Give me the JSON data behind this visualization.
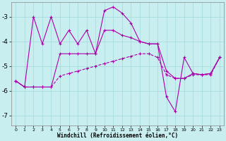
{
  "xlabel": "Windchill (Refroidissement éolien,°C)",
  "bg_color": "#c8eef0",
  "grid_color": "#a8dce0",
  "line_color": "#aa00aa",
  "xlim": [
    -0.5,
    23.5
  ],
  "ylim": [
    -7.4,
    -2.4
  ],
  "yticks": [
    -7,
    -6,
    -5,
    -4,
    -3
  ],
  "xticks": [
    0,
    1,
    2,
    3,
    4,
    5,
    6,
    7,
    8,
    9,
    10,
    11,
    12,
    13,
    14,
    15,
    16,
    17,
    18,
    19,
    20,
    21,
    22,
    23
  ],
  "series1_x": [
    0,
    1,
    2,
    3,
    4,
    5,
    6,
    7,
    8,
    9,
    10,
    11,
    12,
    13,
    14,
    15,
    16,
    17,
    18,
    19,
    20,
    21,
    22,
    23
  ],
  "series1_y": [
    -5.6,
    -5.85,
    -5.85,
    -5.85,
    -5.85,
    -4.5,
    -4.5,
    -4.5,
    -4.5,
    -4.5,
    -3.55,
    -3.55,
    -3.75,
    -3.85,
    -4.0,
    -4.1,
    -4.1,
    -5.2,
    -5.5,
    -5.5,
    -5.3,
    -5.35,
    -5.3,
    -4.65
  ],
  "series2_x": [
    0,
    1,
    2,
    3,
    4,
    5,
    6,
    7,
    8,
    9,
    10,
    11,
    12,
    13,
    14,
    15,
    16,
    17,
    18,
    19,
    20,
    21,
    22,
    23
  ],
  "series2_y": [
    -5.6,
    -5.85,
    -3.0,
    -4.1,
    -3.0,
    -4.1,
    -3.55,
    -4.1,
    -3.55,
    -4.5,
    -2.75,
    -2.6,
    -2.85,
    -3.25,
    -4.0,
    -4.1,
    -4.1,
    -6.25,
    -6.85,
    -4.65,
    -5.3,
    -5.35,
    -5.3,
    -4.65
  ],
  "series3_x": [
    0,
    1,
    2,
    3,
    4,
    5,
    6,
    7,
    8,
    9,
    10,
    11,
    12,
    13,
    14,
    15,
    16,
    17,
    18,
    19,
    20,
    21,
    22,
    23
  ],
  "series3_y": [
    -5.6,
    -5.85,
    -5.85,
    -5.85,
    -5.85,
    -5.4,
    -5.3,
    -5.2,
    -5.1,
    -5.0,
    -4.9,
    -4.8,
    -4.7,
    -4.6,
    -4.5,
    -4.5,
    -4.65,
    -5.35,
    -5.5,
    -5.5,
    -5.35,
    -5.35,
    -5.35,
    -4.65
  ]
}
